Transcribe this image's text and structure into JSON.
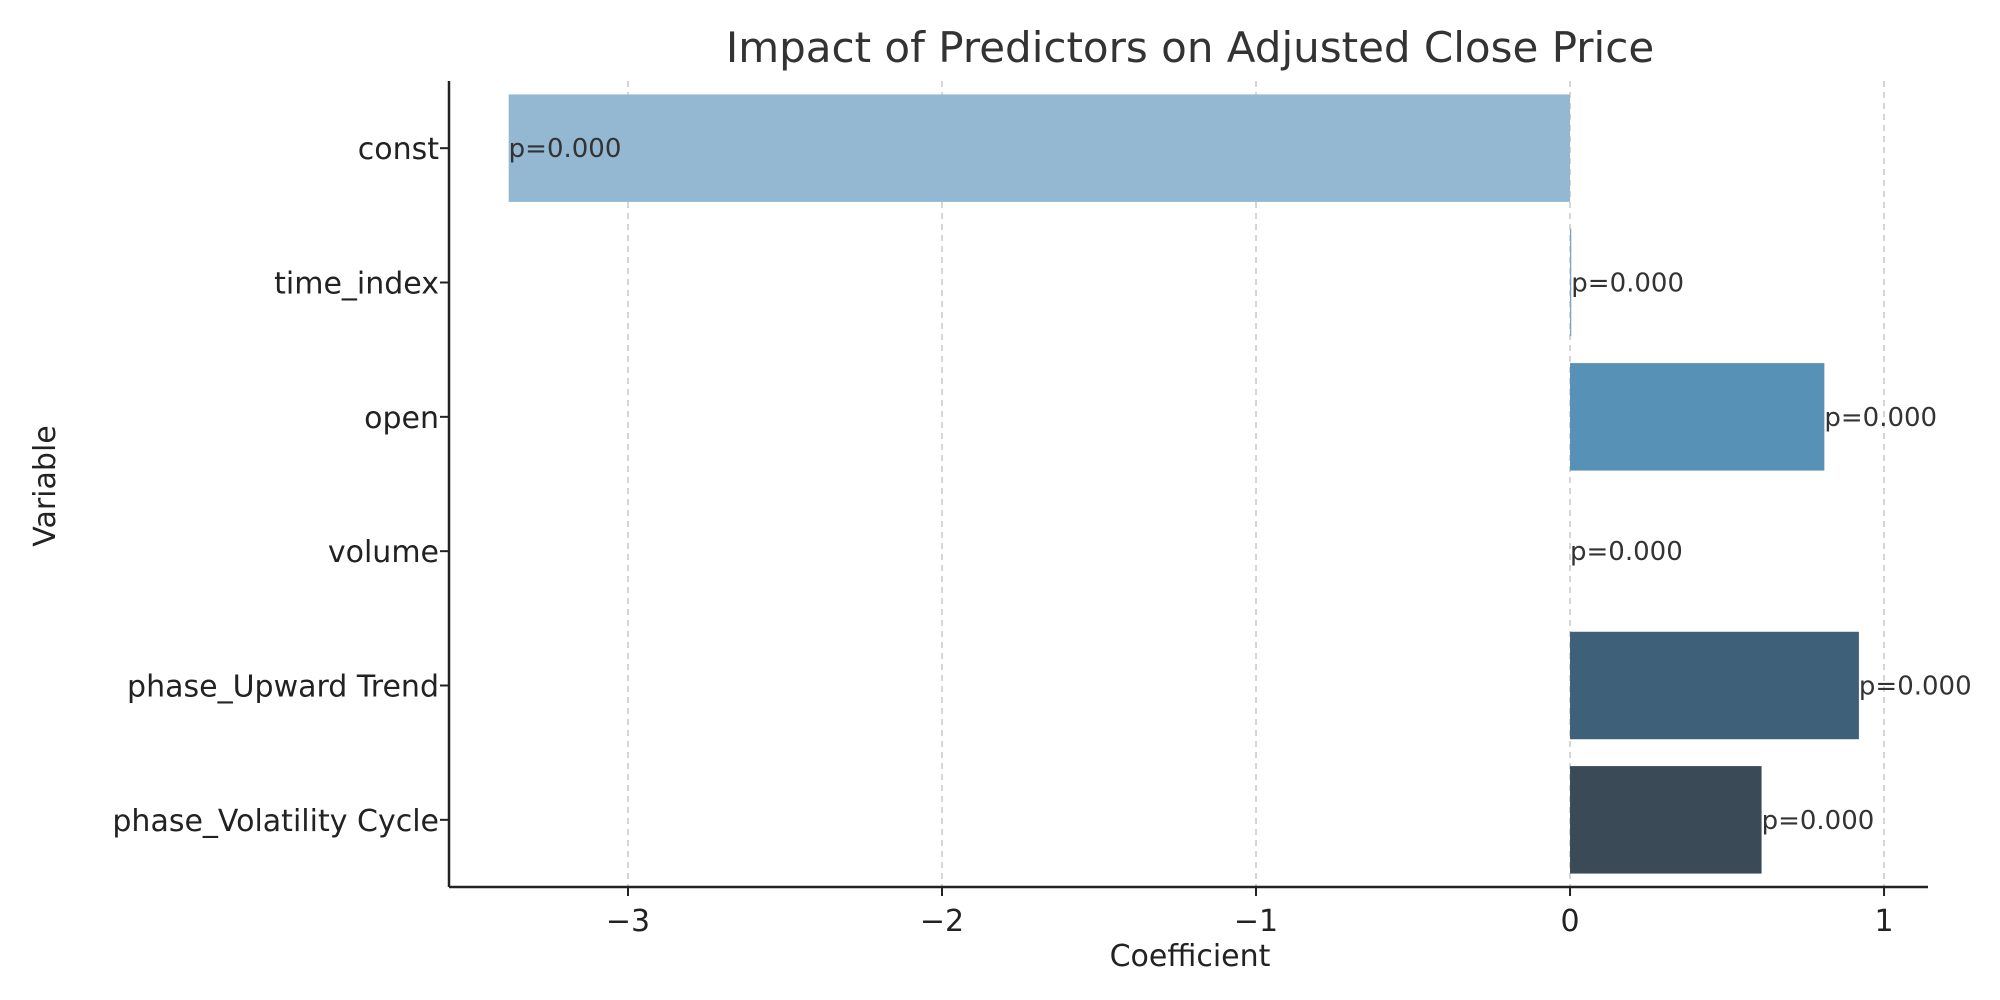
{
  "chart_data": {
    "type": "bar",
    "orientation": "horizontal",
    "title": "Impact of Predictors on Adjusted Close Price",
    "xlabel": "Coefficient",
    "ylabel": "Variable",
    "xlim": [
      -3.57,
      1.14
    ],
    "xticks": [
      -3,
      -2,
      -1,
      0,
      1
    ],
    "xtick_labels": [
      "−3",
      "−2",
      "−1",
      "0",
      "1"
    ],
    "grid": "x-dashed",
    "categories": [
      "const",
      "time_index",
      "open",
      "volume",
      "phase_Upward Trend",
      "phase_Volatility Cycle"
    ],
    "values": [
      -3.38,
      0.004,
      0.81,
      0.0,
      0.92,
      0.61
    ],
    "annotations": [
      "p=0.000",
      "p=0.000",
      "p=0.000",
      "p=0.000",
      "p=0.000",
      "p=0.000"
    ],
    "colors": [
      "#94b8d1",
      "#7aa3c1",
      "#5891b6",
      "#4a7ea3",
      "#3f6079",
      "#3a4a57"
    ]
  }
}
